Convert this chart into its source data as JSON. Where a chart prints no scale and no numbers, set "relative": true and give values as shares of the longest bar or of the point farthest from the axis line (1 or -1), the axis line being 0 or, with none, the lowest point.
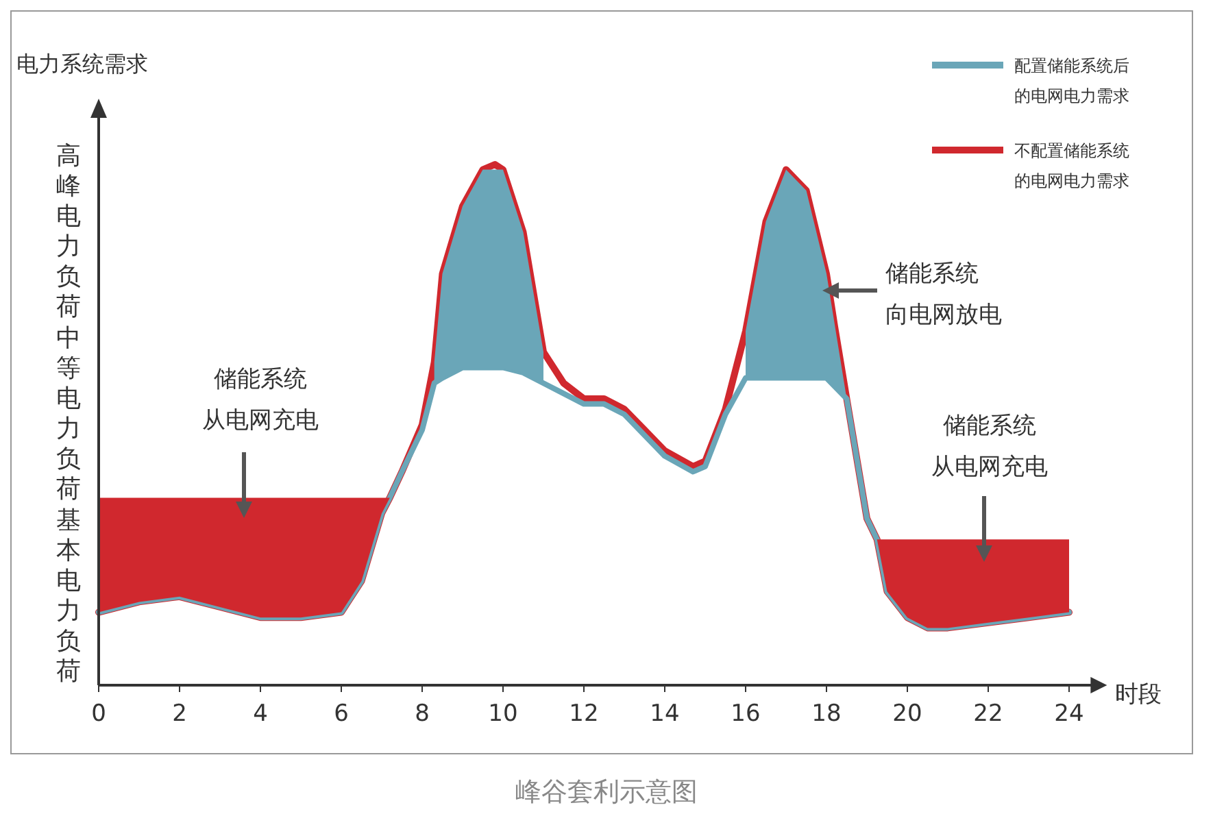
{
  "chart_data": {
    "type": "line",
    "relative": true,
    "title": "峰谷套利示意图",
    "xlabel": "时段",
    "ylabel": "电力系统需求",
    "xlim": [
      0,
      24.6
    ],
    "xticks": [
      0,
      2,
      4,
      6,
      8,
      10,
      12,
      14,
      16,
      18,
      20,
      22,
      24
    ],
    "legend": "top right",
    "annotations": [
      "高峰电力负荷",
      "中等电力负荷",
      "基本电力负荷",
      "储能系统从电网充电",
      "储能系统向电网放电",
      "储能系统从电网充电"
    ],
    "series": [
      {
        "name": "不配置储能系统的电网电力需求",
        "color": "#d0282e",
        "x": [
          0,
          1,
          2,
          3,
          4,
          5,
          6,
          6.5,
          7,
          7.2,
          7.5,
          8,
          8.3,
          8.5,
          9,
          9.5,
          9.8,
          10,
          10.5,
          11,
          11.5,
          12,
          12.5,
          13,
          13.5,
          14,
          14.7,
          15,
          15.5,
          16,
          16.5,
          17,
          17.5,
          18,
          18.2,
          18.5,
          19,
          19.25,
          19.5,
          20,
          20.5,
          21,
          22,
          23,
          24
        ],
        "values": [
          0.14,
          0.16,
          0.17,
          0.15,
          0.13,
          0.13,
          0.14,
          0.2,
          0.33,
          0.36,
          0.41,
          0.5,
          0.62,
          0.79,
          0.92,
          0.99,
          1.0,
          0.99,
          0.87,
          0.64,
          0.58,
          0.55,
          0.55,
          0.53,
          0.49,
          0.45,
          0.42,
          0.43,
          0.53,
          0.68,
          0.89,
          0.99,
          0.95,
          0.79,
          0.69,
          0.55,
          0.32,
          0.28,
          0.18,
          0.13,
          0.11,
          0.11,
          0.12,
          0.13,
          0.14
        ],
        "lower": [
          0.14,
          0.16,
          0.17,
          0.15,
          0.13,
          0.13,
          0.14,
          0.2,
          0.33,
          0.36,
          null,
          null,
          null,
          null,
          null,
          null,
          null,
          null,
          null,
          null,
          null,
          null,
          null,
          null,
          null,
          null,
          null,
          null,
          null,
          null,
          null,
          null,
          null,
          null,
          null,
          null,
          null,
          0.28,
          0.18,
          0.13,
          0.11,
          0.11,
          0.12,
          0.13,
          0.14
        ],
        "upper": [
          0.36,
          0.36,
          0.36,
          0.36,
          0.36,
          0.36,
          0.36,
          0.36,
          0.36,
          0.36,
          null,
          null,
          null,
          null,
          null,
          null,
          null,
          null,
          null,
          null,
          null,
          null,
          null,
          null,
          null,
          null,
          null,
          null,
          null,
          null,
          null,
          null,
          null,
          null,
          null,
          null,
          null,
          0.28,
          0.28,
          0.28,
          0.28,
          0.28,
          0.28,
          0.28,
          0.28
        ]
      },
      {
        "name": "配置储能系统后的电网电力需求",
        "color": "#6aa6b8",
        "x": [
          0,
          1,
          2,
          3,
          4,
          5,
          6,
          6.5,
          7,
          7.2,
          7.5,
          8,
          8.3,
          8.5,
          9,
          9.5,
          10,
          10.5,
          11,
          11.5,
          12,
          12.5,
          13,
          13.5,
          14,
          14.7,
          15,
          15.5,
          16,
          16.5,
          17,
          17.5,
          18,
          18.5,
          19,
          19.25,
          19.5,
          20,
          20.5,
          21,
          22,
          23,
          24
        ],
        "values": [
          0.14,
          0.16,
          0.17,
          0.15,
          0.13,
          0.13,
          0.14,
          0.2,
          0.33,
          0.36,
          0.41,
          0.49,
          0.58,
          0.59,
          0.61,
          0.61,
          0.61,
          0.6,
          0.58,
          0.56,
          0.54,
          0.54,
          0.52,
          0.48,
          0.44,
          0.41,
          0.42,
          0.52,
          0.59,
          0.59,
          0.59,
          0.59,
          0.59,
          0.55,
          0.32,
          0.28,
          0.18,
          0.13,
          0.11,
          0.11,
          0.12,
          0.13,
          0.14
        ],
        "lower": [
          null,
          null,
          null,
          null,
          null,
          null,
          null,
          null,
          null,
          null,
          null,
          null,
          0.58,
          0.59,
          0.61,
          0.61,
          0.61,
          0.6,
          0.58,
          null,
          null,
          null,
          null,
          null,
          null,
          null,
          null,
          null,
          0.59,
          0.59,
          0.59,
          0.59,
          0.59,
          0.55,
          null,
          null,
          null,
          null,
          null,
          null,
          null,
          null,
          null
        ],
        "upper": [
          null,
          null,
          null,
          null,
          null,
          null,
          null,
          null,
          null,
          null,
          null,
          null,
          0.62,
          0.79,
          0.92,
          0.99,
          0.99,
          0.87,
          0.64,
          null,
          null,
          null,
          null,
          null,
          null,
          null,
          null,
          null,
          0.68,
          0.89,
          0.99,
          0.95,
          0.79,
          0.55,
          null,
          null,
          null,
          null,
          null,
          null,
          null,
          null,
          null
        ]
      }
    ]
  }
}
